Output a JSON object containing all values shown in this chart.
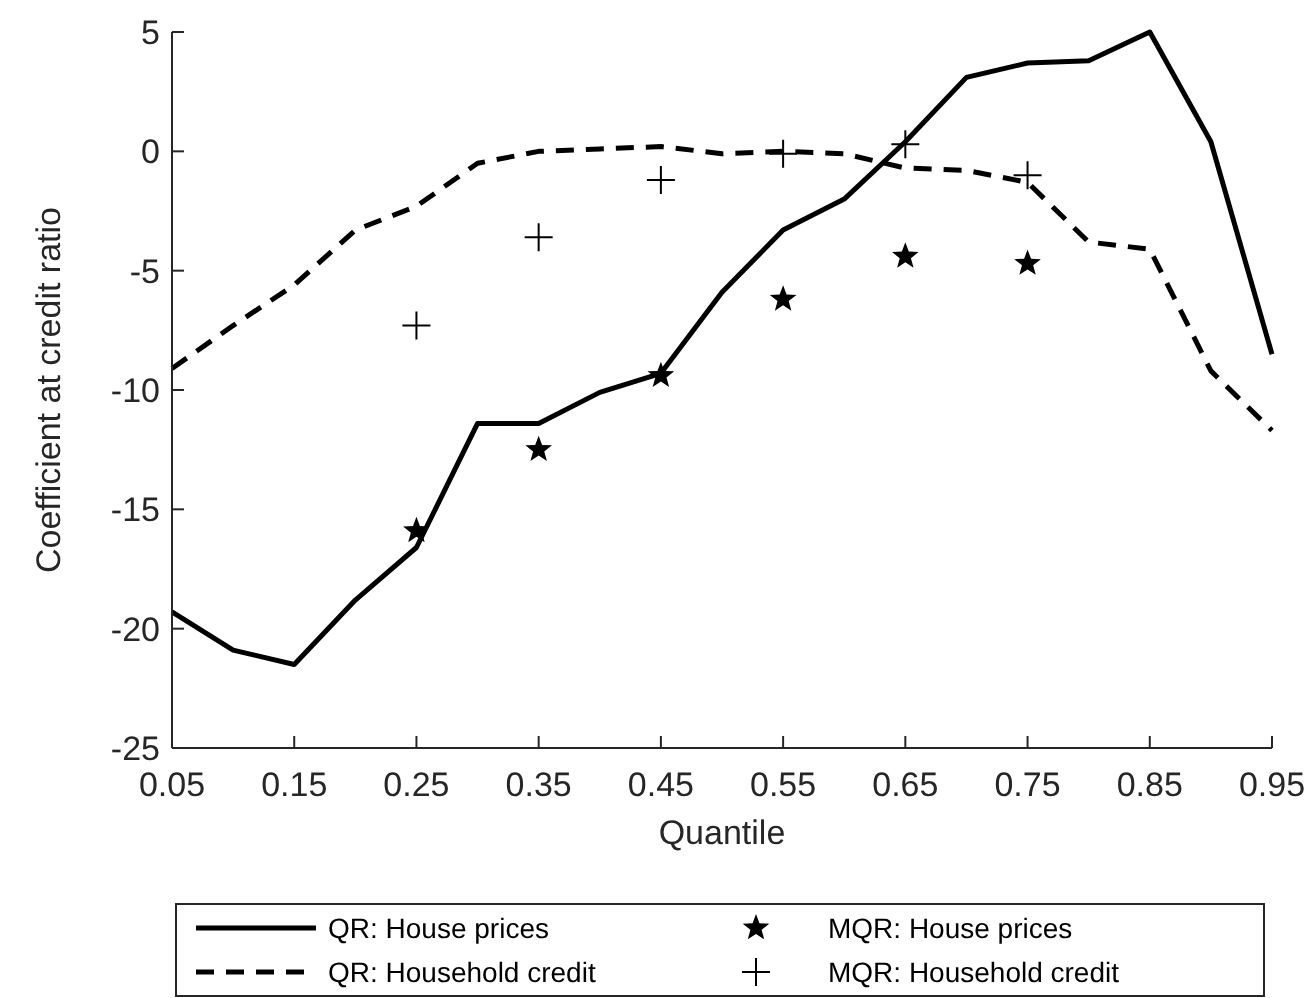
{
  "chart_data": {
    "type": "line",
    "xlabel": "Quantile",
    "ylabel": "Coefficient at credit ratio",
    "x": [
      0.05,
      0.1,
      0.15,
      0.2,
      0.25,
      0.3,
      0.35,
      0.4,
      0.45,
      0.5,
      0.55,
      0.6,
      0.65,
      0.7,
      0.75,
      0.8,
      0.85,
      0.9,
      0.95
    ],
    "series": [
      {
        "name": "QR: House prices",
        "color": "#000000",
        "line_style": "solid",
        "marker": "none",
        "values": [
          -19.3,
          -20.9,
          -21.5,
          -18.8,
          -16.6,
          -11.4,
          -11.4,
          -10.1,
          -9.3,
          -5.9,
          -3.3,
          -2.0,
          0.4,
          3.1,
          3.7,
          3.8,
          5.0,
          0.4,
          -8.5
        ]
      },
      {
        "name": "QR: Household credit",
        "color": "#000000",
        "line_style": "dashed",
        "marker": "none",
        "values": [
          -9.1,
          -7.3,
          -5.6,
          -3.3,
          -2.3,
          -0.5,
          0,
          0.1,
          0.2,
          -0.1,
          0,
          -0.1,
          -0.7,
          -0.8,
          -1.3,
          -3.8,
          -4.1,
          -9.2,
          -11.7
        ]
      },
      {
        "name": "MQR: House prices",
        "type": "scatter",
        "color": "#000000",
        "marker": "star",
        "x": [
          0.25,
          0.35,
          0.45,
          0.55,
          0.65,
          0.75
        ],
        "values": [
          -15.9,
          -12.5,
          -9.4,
          -6.2,
          -4.4,
          -4.7
        ]
      },
      {
        "name": "MQR: Household credit",
        "type": "scatter",
        "color": "#000000",
        "marker": "cross",
        "x": [
          0.25,
          0.35,
          0.45,
          0.55,
          0.65,
          0.75
        ],
        "values": [
          -7.3,
          -3.6,
          -1.2,
          -0.1,
          0.3,
          -1.0
        ]
      }
    ],
    "xlim": [
      0.05,
      0.95
    ],
    "xticks": [
      {
        "value": 0.05,
        "label": "0.05"
      },
      {
        "value": 0.15,
        "label": "0.15"
      },
      {
        "value": 0.25,
        "label": "0.25"
      },
      {
        "value": 0.35,
        "label": "0.35"
      },
      {
        "value": 0.45,
        "label": "0.45"
      },
      {
        "value": 0.55,
        "label": "0.55"
      },
      {
        "value": 0.65,
        "label": "0.65"
      },
      {
        "value": 0.75,
        "label": "0.75"
      },
      {
        "value": 0.85,
        "label": "0.85"
      },
      {
        "value": 0.95,
        "label": "0.95"
      }
    ],
    "ylim": [
      -25,
      5
    ],
    "yticks": [
      -25,
      -20,
      -15,
      -10,
      -5,
      0,
      5
    ],
    "grid": false,
    "legend": "bottom"
  }
}
